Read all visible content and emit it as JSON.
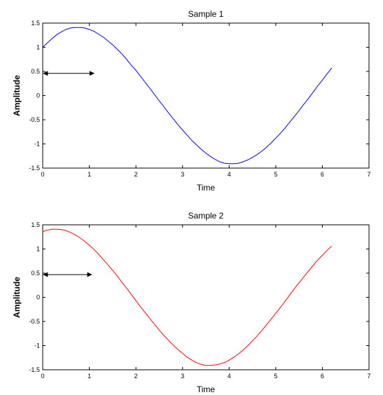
{
  "chart_data": [
    {
      "type": "line",
      "title": "Sample 1",
      "xlabel": "Time",
      "ylabel": "Amplitude",
      "xlim": [
        0,
        7
      ],
      "ylim": [
        -1.5,
        1.5
      ],
      "xticks": [
        "0",
        "1",
        "2",
        "3",
        "4",
        "5",
        "6",
        "7"
      ],
      "yticks": [
        "-1.5",
        "-1",
        "-0.5",
        "0",
        "0.5",
        "1",
        "1.5"
      ],
      "grid": false,
      "series": [
        {
          "color": "#0000ff",
          "x": [
            0,
            0.1,
            0.2,
            0.3,
            0.4,
            0.5,
            0.6,
            0.7,
            0.8,
            0.9,
            1.0,
            1.1,
            1.2,
            1.3,
            1.4,
            1.5,
            1.6,
            1.7,
            1.8,
            1.9,
            2.0,
            2.1,
            2.2,
            2.3,
            2.4,
            2.5,
            2.6,
            2.7,
            2.8,
            2.9,
            3.0,
            3.1,
            3.2,
            3.3,
            3.4,
            3.5,
            3.6,
            3.7,
            3.8,
            3.9,
            4.0,
            4.1,
            4.2,
            4.3,
            4.4,
            4.5,
            4.6,
            4.7,
            4.8,
            4.9,
            5.0,
            5.1,
            5.2,
            5.3,
            5.4,
            5.5,
            5.6,
            5.7,
            5.8,
            5.9,
            6.0,
            6.1,
            6.2
          ],
          "y": [
            1.0,
            1.09,
            1.18,
            1.26,
            1.32,
            1.37,
            1.4,
            1.41,
            1.41,
            1.4,
            1.37,
            1.33,
            1.27,
            1.21,
            1.13,
            1.05,
            0.96,
            0.86,
            0.75,
            0.63,
            0.52,
            0.4,
            0.27,
            0.15,
            0.02,
            -0.11,
            -0.23,
            -0.36,
            -0.48,
            -0.6,
            -0.71,
            -0.82,
            -0.93,
            -1.02,
            -1.11,
            -1.19,
            -1.26,
            -1.32,
            -1.37,
            -1.4,
            -1.41,
            -1.41,
            -1.4,
            -1.37,
            -1.33,
            -1.28,
            -1.22,
            -1.15,
            -1.07,
            -0.98,
            -0.88,
            -0.78,
            -0.67,
            -0.55,
            -0.43,
            -0.31,
            -0.18,
            -0.06,
            0.07,
            0.2,
            0.32,
            0.45,
            0.57
          ]
        }
      ],
      "annotation": {
        "type": "double-arrow",
        "x": [
          0,
          1.1
        ],
        "y": 0.46
      }
    },
    {
      "type": "line",
      "title": "Sample 2",
      "xlabel": "Time",
      "ylabel": "Amplitude",
      "xlim": [
        0,
        7
      ],
      "ylim": [
        -1.5,
        1.5
      ],
      "xticks": [
        "0",
        "1",
        "2",
        "3",
        "4",
        "5",
        "6",
        "7"
      ],
      "yticks": [
        "-1.5",
        "-1",
        "-0.5",
        "0",
        "0.5",
        "1",
        "1.5"
      ],
      "grid": false,
      "series": [
        {
          "color": "#ff0000",
          "x": [
            0,
            0.1,
            0.2,
            0.3,
            0.4,
            0.5,
            0.6,
            0.7,
            0.8,
            0.9,
            1.0,
            1.1,
            1.2,
            1.3,
            1.4,
            1.5,
            1.6,
            1.7,
            1.8,
            1.9,
            2.0,
            2.1,
            2.2,
            2.3,
            2.4,
            2.5,
            2.6,
            2.7,
            2.8,
            2.9,
            3.0,
            3.1,
            3.2,
            3.3,
            3.4,
            3.5,
            3.6,
            3.7,
            3.8,
            3.9,
            4.0,
            4.1,
            4.2,
            4.3,
            4.4,
            4.5,
            4.6,
            4.7,
            4.8,
            4.9,
            5.0,
            5.1,
            5.2,
            5.3,
            5.4,
            5.5,
            5.6,
            5.7,
            5.8,
            5.9,
            6.0,
            6.1,
            6.2
          ],
          "y": [
            1.36,
            1.39,
            1.41,
            1.41,
            1.4,
            1.38,
            1.34,
            1.29,
            1.23,
            1.16,
            1.08,
            0.99,
            0.89,
            0.78,
            0.67,
            0.56,
            0.44,
            0.31,
            0.19,
            0.06,
            -0.07,
            -0.2,
            -0.32,
            -0.44,
            -0.56,
            -0.68,
            -0.79,
            -0.89,
            -0.99,
            -1.08,
            -1.16,
            -1.24,
            -1.3,
            -1.35,
            -1.39,
            -1.41,
            -1.41,
            -1.4,
            -1.38,
            -1.35,
            -1.3,
            -1.24,
            -1.17,
            -1.09,
            -1.0,
            -0.9,
            -0.8,
            -0.69,
            -0.57,
            -0.45,
            -0.33,
            -0.21,
            -0.08,
            0.05,
            0.18,
            0.3,
            0.42,
            0.54,
            0.66,
            0.77,
            0.87,
            0.97,
            1.06
          ]
        }
      ],
      "annotation": {
        "type": "double-arrow",
        "x": [
          0,
          1.05
        ],
        "y": 0.47
      }
    }
  ]
}
